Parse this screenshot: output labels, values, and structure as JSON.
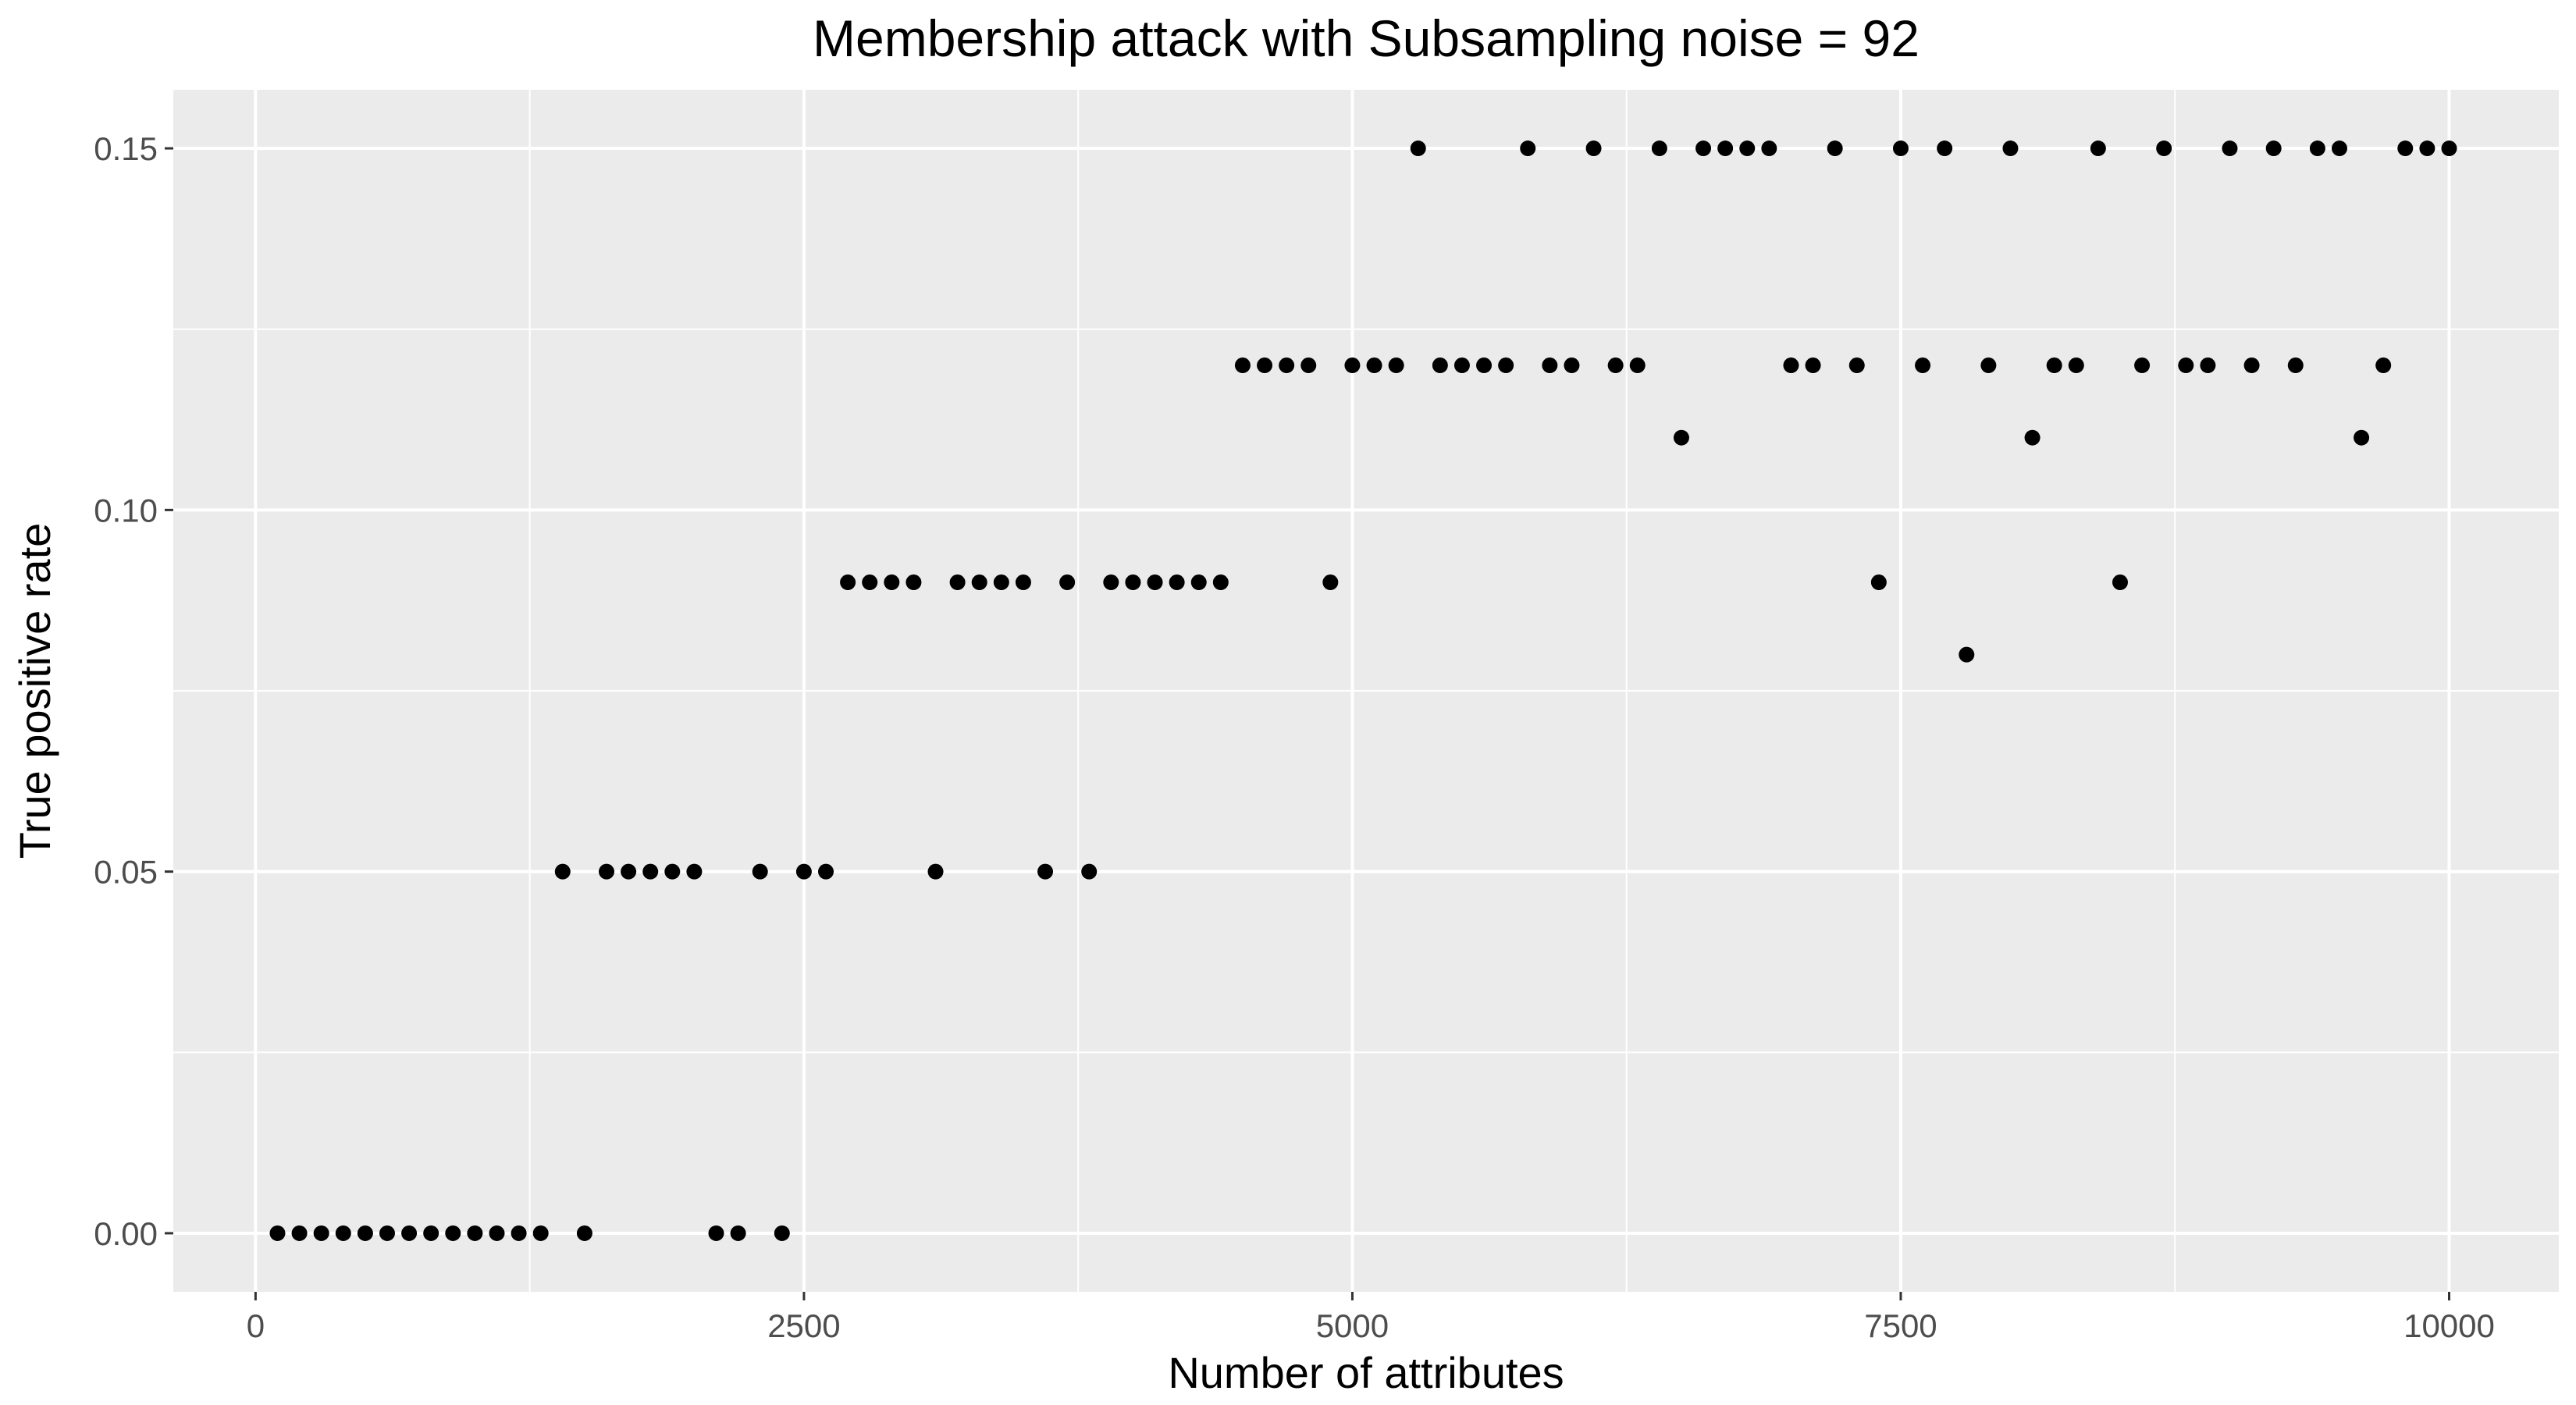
{
  "chart_data": {
    "type": "scatter",
    "title": "Membership attack with Subsampling noise = 92",
    "xlabel": "Number of attributes",
    "ylabel": "True positive rate",
    "xlim": [
      -375,
      10500
    ],
    "ylim": [
      -0.0081,
      0.1581
    ],
    "x_ticks": [
      0,
      2500,
      5000,
      7500,
      10000
    ],
    "x_tick_labels": [
      "0",
      "2500",
      "5000",
      "7500",
      "10000"
    ],
    "y_ticks": [
      0.0,
      0.05,
      0.1,
      0.15
    ],
    "y_tick_labels": [
      "0.00",
      "0.05",
      "0.10",
      "0.15"
    ],
    "grid": true,
    "legend": "none",
    "colors": {
      "panel": "#ebebeb",
      "grid": "#ffffff",
      "point": "#000000"
    },
    "series": [
      {
        "points": [
          [
            100,
            0.0
          ],
          [
            200,
            0.0
          ],
          [
            300,
            0.0
          ],
          [
            400,
            0.0
          ],
          [
            500,
            0.0
          ],
          [
            600,
            0.0
          ],
          [
            700,
            0.0
          ],
          [
            800,
            0.0
          ],
          [
            900,
            0.0
          ],
          [
            1000,
            0.0
          ],
          [
            1100,
            0.0
          ],
          [
            1200,
            0.0
          ],
          [
            1300,
            0.0
          ],
          [
            1400,
            0.05
          ],
          [
            1500,
            0.0
          ],
          [
            1600,
            0.05
          ],
          [
            1700,
            0.05
          ],
          [
            1800,
            0.05
          ],
          [
            1900,
            0.05
          ],
          [
            2000,
            0.05
          ],
          [
            2100,
            0.0
          ],
          [
            2200,
            0.0
          ],
          [
            2300,
            0.05
          ],
          [
            2400,
            0.0
          ],
          [
            2500,
            0.05
          ],
          [
            2600,
            0.05
          ],
          [
            2700,
            0.09
          ],
          [
            2800,
            0.09
          ],
          [
            2900,
            0.09
          ],
          [
            3000,
            0.09
          ],
          [
            3100,
            0.05
          ],
          [
            3200,
            0.09
          ],
          [
            3300,
            0.09
          ],
          [
            3400,
            0.09
          ],
          [
            3500,
            0.09
          ],
          [
            3600,
            0.05
          ],
          [
            3700,
            0.09
          ],
          [
            3800,
            0.05
          ],
          [
            3900,
            0.09
          ],
          [
            4000,
            0.09
          ],
          [
            4100,
            0.09
          ],
          [
            4200,
            0.09
          ],
          [
            4300,
            0.09
          ],
          [
            4400,
            0.09
          ],
          [
            4500,
            0.12
          ],
          [
            4600,
            0.12
          ],
          [
            4700,
            0.12
          ],
          [
            4800,
            0.12
          ],
          [
            4900,
            0.09
          ],
          [
            5000,
            0.12
          ],
          [
            5100,
            0.12
          ],
          [
            5200,
            0.12
          ],
          [
            5300,
            0.15
          ],
          [
            5400,
            0.12
          ],
          [
            5500,
            0.12
          ],
          [
            5600,
            0.12
          ],
          [
            5700,
            0.12
          ],
          [
            5800,
            0.15
          ],
          [
            5900,
            0.12
          ],
          [
            6000,
            0.12
          ],
          [
            6100,
            0.15
          ],
          [
            6200,
            0.12
          ],
          [
            6300,
            0.12
          ],
          [
            6400,
            0.15
          ],
          [
            6500,
            0.11
          ],
          [
            6600,
            0.15
          ],
          [
            6700,
            0.15
          ],
          [
            6800,
            0.15
          ],
          [
            6900,
            0.15
          ],
          [
            7000,
            0.12
          ],
          [
            7100,
            0.12
          ],
          [
            7200,
            0.15
          ],
          [
            7300,
            0.12
          ],
          [
            7400,
            0.09
          ],
          [
            7500,
            0.15
          ],
          [
            7600,
            0.12
          ],
          [
            7700,
            0.15
          ],
          [
            7800,
            0.08
          ],
          [
            7900,
            0.12
          ],
          [
            8000,
            0.15
          ],
          [
            8100,
            0.11
          ],
          [
            8200,
            0.12
          ],
          [
            8300,
            0.12
          ],
          [
            8400,
            0.15
          ],
          [
            8500,
            0.09
          ],
          [
            8600,
            0.12
          ],
          [
            8700,
            0.15
          ],
          [
            8800,
            0.12
          ],
          [
            8900,
            0.12
          ],
          [
            9000,
            0.15
          ],
          [
            9100,
            0.12
          ],
          [
            9200,
            0.15
          ],
          [
            9300,
            0.12
          ],
          [
            9400,
            0.15
          ],
          [
            9500,
            0.15
          ],
          [
            9600,
            0.11
          ],
          [
            9700,
            0.12
          ],
          [
            9800,
            0.15
          ],
          [
            9900,
            0.15
          ],
          [
            10000,
            0.15
          ]
        ]
      }
    ]
  }
}
